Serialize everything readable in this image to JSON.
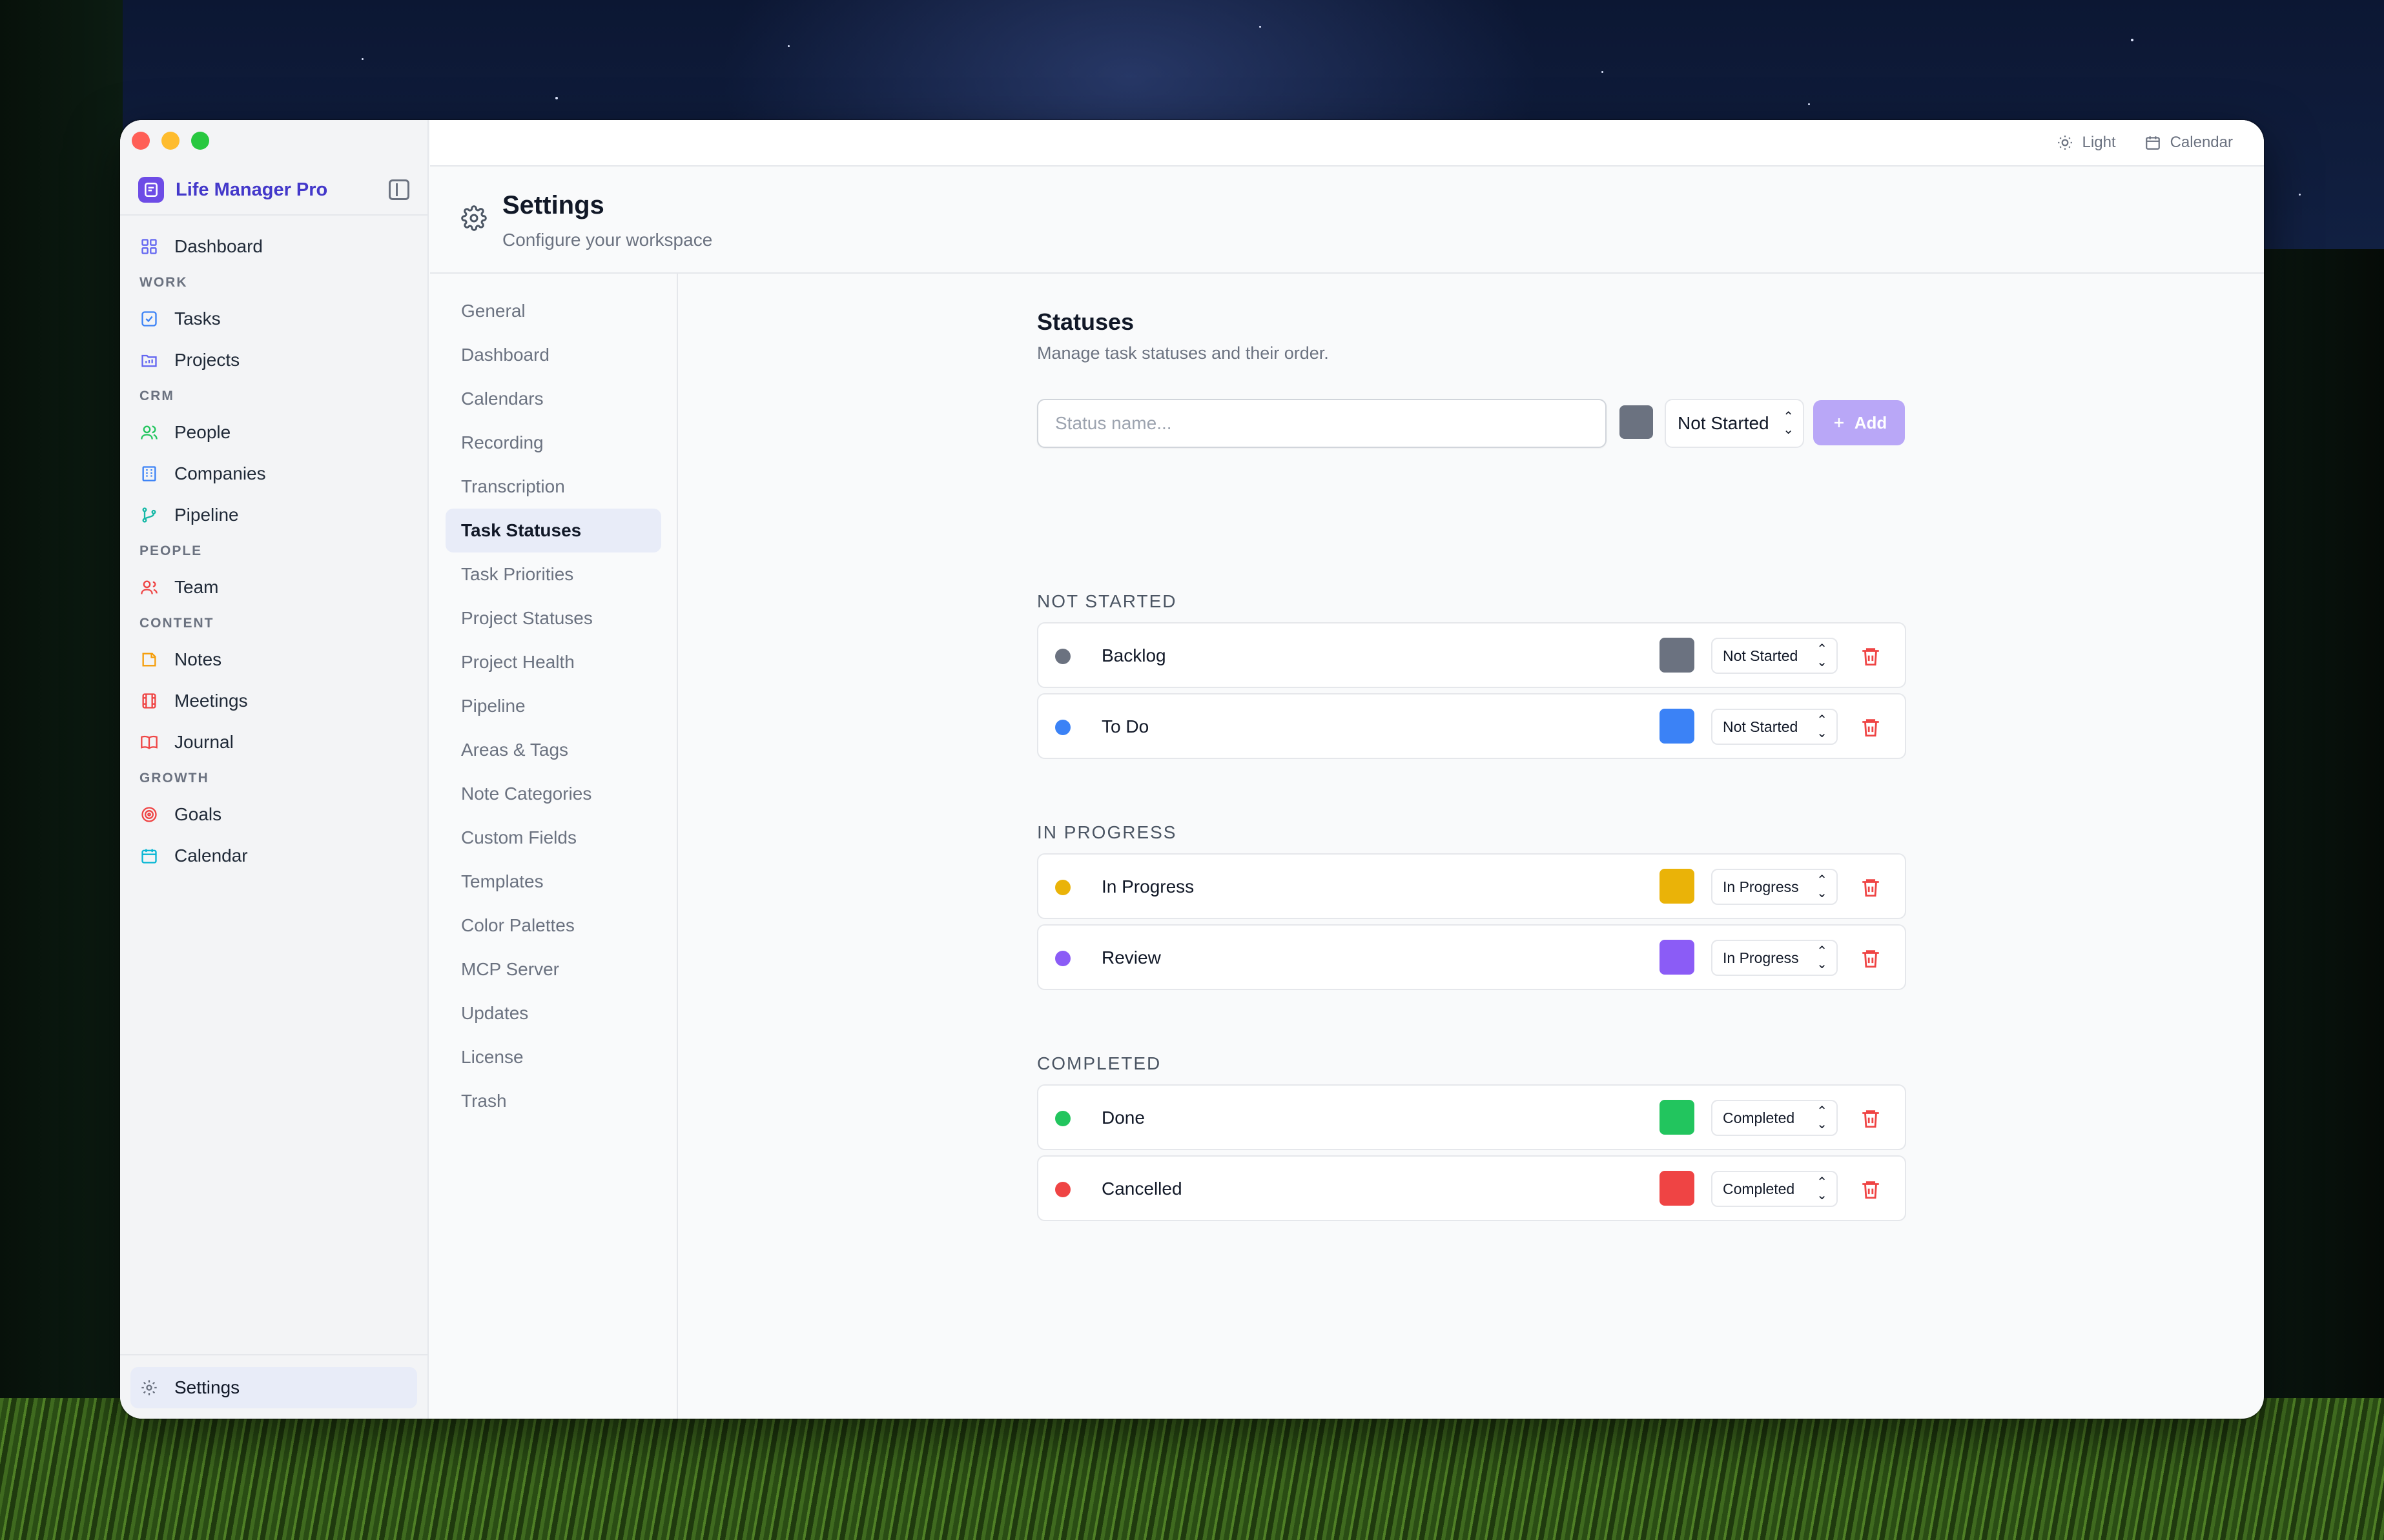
{
  "window": {
    "traffic_colors": [
      "#ff5f57",
      "#febc2e",
      "#28c840"
    ]
  },
  "sidebar": {
    "brand": "Life Manager Pro",
    "brand_color": "#4338ca",
    "items": [
      {
        "type": "item",
        "label": "Dashboard",
        "icon": "grid-icon",
        "color": "#6366f1"
      },
      {
        "type": "section",
        "label": "WORK"
      },
      {
        "type": "item",
        "label": "Tasks",
        "icon": "checkbox-icon",
        "color": "#3b82f6"
      },
      {
        "type": "item",
        "label": "Projects",
        "icon": "folder-icon",
        "color": "#6366f1"
      },
      {
        "type": "section",
        "label": "CRM"
      },
      {
        "type": "item",
        "label": "People",
        "icon": "users-icon",
        "color": "#22c55e"
      },
      {
        "type": "item",
        "label": "Companies",
        "icon": "building-icon",
        "color": "#3b82f6"
      },
      {
        "type": "item",
        "label": "Pipeline",
        "icon": "git-branch-icon",
        "color": "#14b8a6"
      },
      {
        "type": "section",
        "label": "PEOPLE"
      },
      {
        "type": "item",
        "label": "Team",
        "icon": "user-group-icon",
        "color": "#ef4444"
      },
      {
        "type": "section",
        "label": "CONTENT"
      },
      {
        "type": "item",
        "label": "Notes",
        "icon": "note-icon",
        "color": "#f59e0b"
      },
      {
        "type": "item",
        "label": "Meetings",
        "icon": "film-icon",
        "color": "#ef4444"
      },
      {
        "type": "item",
        "label": "Journal",
        "icon": "book-icon",
        "color": "#ef4444"
      },
      {
        "type": "section",
        "label": "GROWTH"
      },
      {
        "type": "item",
        "label": "Goals",
        "icon": "target-icon",
        "color": "#ef4444"
      },
      {
        "type": "item",
        "label": "Calendar",
        "icon": "calendar-icon",
        "color": "#06b6d4"
      }
    ],
    "bottom": {
      "label": "Settings",
      "icon": "gear-icon"
    }
  },
  "topbar": {
    "theme_label": "Light",
    "calendar_label": "Calendar"
  },
  "header": {
    "title": "Settings",
    "subtitle": "Configure your workspace"
  },
  "settings_nav": {
    "active": "Task Statuses",
    "items": [
      "General",
      "Dashboard",
      "Calendars",
      "Recording",
      "Transcription",
      "Task Statuses",
      "Task Priorities",
      "Project Statuses",
      "Project Health",
      "Pipeline",
      "Areas & Tags",
      "Note Categories",
      "Custom Fields",
      "Templates",
      "Color Palettes",
      "MCP Server",
      "Updates",
      "License",
      "Trash"
    ]
  },
  "statuses": {
    "title": "Statuses",
    "subtitle": "Manage task statuses and their order.",
    "new_status": {
      "placeholder": "Status name...",
      "value": "",
      "color": "#6b7280",
      "category": "Not Started",
      "add_label": "Add"
    },
    "groups": [
      {
        "label": "NOT STARTED",
        "items": [
          {
            "name": "Backlog",
            "color": "#6b7280",
            "category": "Not Started"
          },
          {
            "name": "To Do",
            "color": "#3b82f6",
            "category": "Not Started"
          }
        ]
      },
      {
        "label": "IN PROGRESS",
        "items": [
          {
            "name": "In Progress",
            "color": "#eab308",
            "category": "In Progress"
          },
          {
            "name": "Review",
            "color": "#8b5cf6",
            "category": "In Progress"
          }
        ]
      },
      {
        "label": "COMPLETED",
        "items": [
          {
            "name": "Done",
            "color": "#22c55e",
            "category": "Completed"
          },
          {
            "name": "Cancelled",
            "color": "#ef4444",
            "category": "Completed"
          }
        ]
      }
    ]
  }
}
